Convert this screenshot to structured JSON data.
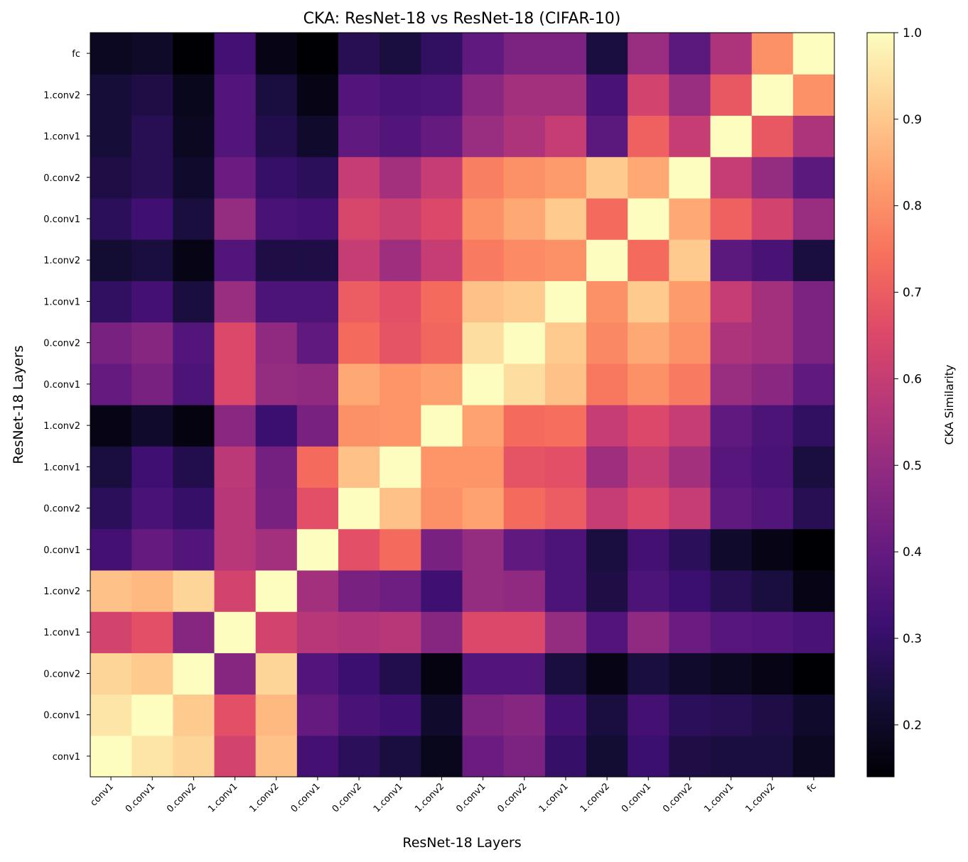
{
  "chart_data": {
    "type": "heatmap",
    "title": "CKA: ResNet-18 vs ResNet-18 (CIFAR-10)",
    "xlabel": "ResNet-18 Layers",
    "ylabel": "ResNet-18 Layers",
    "colorbar_label": "CKA Similarity",
    "colormap": "magma",
    "color_range": [
      0.14,
      1.0
    ],
    "colorbar_ticks": [
      "0.2",
      "0.3",
      "0.4",
      "0.5",
      "0.6",
      "0.7",
      "0.8",
      "0.9",
      "1.0"
    ],
    "x_labels": [
      "conv1",
      "0.conv1",
      "0.conv2",
      "1.conv1",
      "1.conv2",
      "0.conv1",
      "0.conv2",
      "1.conv1",
      "1.conv2",
      "0.conv1",
      "0.conv2",
      "1.conv1",
      "1.conv2",
      "0.conv1",
      "0.conv2",
      "1.conv1",
      "1.conv2",
      "fc"
    ],
    "y_labels_bottom_to_top": [
      "conv1",
      "0.conv1",
      "0.conv2",
      "1.conv1",
      "1.conv2",
      "0.conv1",
      "0.conv2",
      "1.conv1",
      "1.conv2",
      "0.conv1",
      "0.conv2",
      "1.conv1",
      "1.conv2",
      "0.conv1",
      "0.conv2",
      "1.conv1",
      "1.conv2",
      "fc"
    ],
    "z_rows_bottom_to_top": [
      [
        1.0,
        0.955,
        0.925,
        0.63,
        0.89,
        0.33,
        0.28,
        0.24,
        0.18,
        0.41,
        0.45,
        0.3,
        0.22,
        0.31,
        0.25,
        0.24,
        0.24,
        0.19
      ],
      [
        0.955,
        1.0,
        0.905,
        0.67,
        0.875,
        0.4,
        0.34,
        0.32,
        0.21,
        0.45,
        0.47,
        0.33,
        0.24,
        0.33,
        0.28,
        0.27,
        0.25,
        0.21
      ],
      [
        0.925,
        0.905,
        1.0,
        0.47,
        0.925,
        0.36,
        0.31,
        0.26,
        0.16,
        0.36,
        0.36,
        0.24,
        0.17,
        0.24,
        0.21,
        0.19,
        0.17,
        0.14
      ],
      [
        0.63,
        0.67,
        0.47,
        1.0,
        0.63,
        0.57,
        0.56,
        0.57,
        0.47,
        0.65,
        0.65,
        0.5,
        0.36,
        0.49,
        0.41,
        0.37,
        0.36,
        0.34
      ],
      [
        0.89,
        0.875,
        0.925,
        0.63,
        1.0,
        0.53,
        0.44,
        0.42,
        0.32,
        0.5,
        0.49,
        0.35,
        0.25,
        0.35,
        0.31,
        0.27,
        0.24,
        0.17
      ],
      [
        0.33,
        0.4,
        0.36,
        0.57,
        0.53,
        1.0,
        0.67,
        0.73,
        0.44,
        0.5,
        0.39,
        0.35,
        0.24,
        0.33,
        0.28,
        0.21,
        0.17,
        0.14
      ],
      [
        0.28,
        0.34,
        0.3,
        0.57,
        0.44,
        0.67,
        1.0,
        0.89,
        0.8,
        0.835,
        0.73,
        0.7,
        0.6,
        0.65,
        0.6,
        0.39,
        0.36,
        0.27
      ],
      [
        0.24,
        0.32,
        0.26,
        0.58,
        0.43,
        0.73,
        0.89,
        1.0,
        0.81,
        0.81,
        0.68,
        0.67,
        0.52,
        0.6,
        0.53,
        0.37,
        0.34,
        0.24
      ],
      [
        0.17,
        0.21,
        0.16,
        0.48,
        0.31,
        0.44,
        0.8,
        0.81,
        1.0,
        0.835,
        0.73,
        0.74,
        0.6,
        0.65,
        0.6,
        0.39,
        0.35,
        0.29
      ],
      [
        0.4,
        0.44,
        0.35,
        0.65,
        0.5,
        0.49,
        0.845,
        0.81,
        0.83,
        1.0,
        0.94,
        0.89,
        0.755,
        0.8,
        0.76,
        0.51,
        0.48,
        0.39
      ],
      [
        0.44,
        0.47,
        0.36,
        0.65,
        0.49,
        0.39,
        0.73,
        0.68,
        0.72,
        0.94,
        1.0,
        0.905,
        0.785,
        0.845,
        0.8,
        0.55,
        0.53,
        0.45
      ],
      [
        0.29,
        0.33,
        0.24,
        0.51,
        0.35,
        0.35,
        0.7,
        0.67,
        0.73,
        0.89,
        0.905,
        1.0,
        0.8,
        0.905,
        0.82,
        0.6,
        0.53,
        0.45
      ],
      [
        0.22,
        0.24,
        0.17,
        0.36,
        0.25,
        0.25,
        0.6,
        0.52,
        0.6,
        0.76,
        0.79,
        0.8,
        1.0,
        0.73,
        0.905,
        0.38,
        0.34,
        0.24
      ],
      [
        0.28,
        0.32,
        0.24,
        0.5,
        0.34,
        0.33,
        0.64,
        0.61,
        0.65,
        0.8,
        0.845,
        0.905,
        0.73,
        1.0,
        0.845,
        0.71,
        0.63,
        0.51
      ],
      [
        0.25,
        0.27,
        0.21,
        0.41,
        0.3,
        0.28,
        0.6,
        0.53,
        0.6,
        0.77,
        0.8,
        0.82,
        0.905,
        0.845,
        1.0,
        0.6,
        0.5,
        0.38
      ],
      [
        0.23,
        0.27,
        0.19,
        0.36,
        0.26,
        0.21,
        0.39,
        0.36,
        0.4,
        0.51,
        0.55,
        0.6,
        0.38,
        0.71,
        0.6,
        1.0,
        0.69,
        0.55
      ],
      [
        0.23,
        0.25,
        0.18,
        0.36,
        0.24,
        0.17,
        0.36,
        0.34,
        0.35,
        0.48,
        0.53,
        0.53,
        0.34,
        0.63,
        0.51,
        0.69,
        1.0,
        0.8
      ],
      [
        0.19,
        0.2,
        0.14,
        0.33,
        0.17,
        0.14,
        0.27,
        0.24,
        0.29,
        0.39,
        0.45,
        0.45,
        0.24,
        0.51,
        0.38,
        0.55,
        0.8,
        1.0
      ]
    ]
  }
}
